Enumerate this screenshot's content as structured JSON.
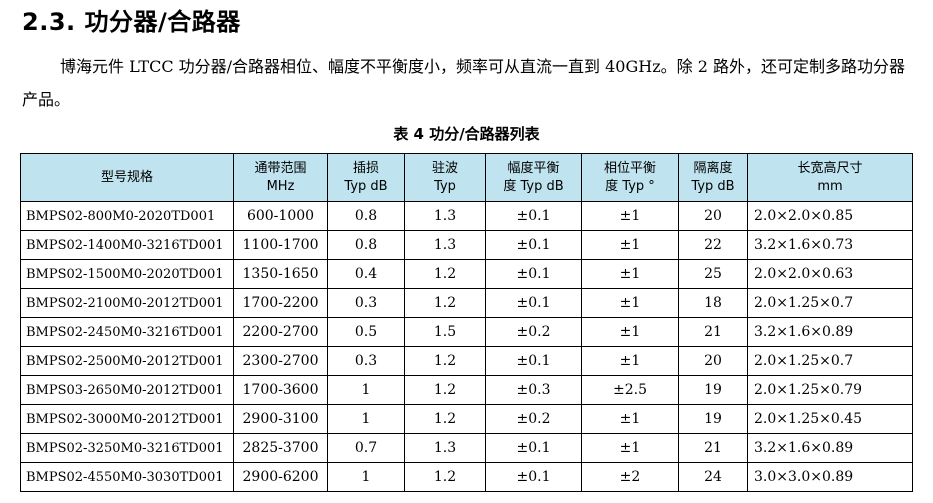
{
  "section": {
    "title": "2.3. 功分器/合路器"
  },
  "intro": {
    "text": "博海元件 LTCC 功分器/合路器相位、幅度不平衡度小，频率可从直流一直到 40GHz。除 2 路外，还可定制多路功分器产品。"
  },
  "table": {
    "caption": "表 4   功分/合路器列表",
    "headers": [
      {
        "line1": "型号规格",
        "line2": ""
      },
      {
        "line1": "通带范围",
        "line2": "MHz"
      },
      {
        "line1": "插损",
        "line2": "Typ dB"
      },
      {
        "line1": "驻波",
        "line2": "Typ"
      },
      {
        "line1": "幅度平衡",
        "line2": "度 Typ dB"
      },
      {
        "line1": "相位平衡",
        "line2": "度 Typ °"
      },
      {
        "line1": "隔离度",
        "line2": "Typ dB"
      },
      {
        "line1": "长宽高尺寸",
        "line2": "mm"
      }
    ],
    "rows": [
      [
        "BMPS02-800M0-2020TD001",
        "600-1000",
        "0.8",
        "1.3",
        "±0.1",
        "±1",
        "20",
        "2.0×2.0×0.85"
      ],
      [
        "BMPS02-1400M0-3216TD001",
        "1100-1700",
        "0.8",
        "1.3",
        "±0.1",
        "±1",
        "22",
        "3.2×1.6×0.73"
      ],
      [
        "BMPS02-1500M0-2020TD001",
        "1350-1650",
        "0.4",
        "1.2",
        "±0.1",
        "±1",
        "25",
        "2.0×2.0×0.63"
      ],
      [
        "BMPS02-2100M0-2012TD001",
        "1700-2200",
        "0.3",
        "1.2",
        "±0.1",
        "±1",
        "18",
        "2.0×1.25×0.7"
      ],
      [
        "BMPS02-2450M0-3216TD001",
        "2200-2700",
        "0.5",
        "1.5",
        "±0.2",
        "±1",
        "21",
        "3.2×1.6×0.89"
      ],
      [
        "BMPS02-2500M0-2012TD001",
        "2300-2700",
        "0.3",
        "1.2",
        "±0.1",
        "±1",
        "20",
        "2.0×1.25×0.7"
      ],
      [
        "BMPS03-2650M0-2012TD001",
        "1700-3600",
        "1",
        "1.2",
        "±0.3",
        "±2.5",
        "19",
        "2.0×1.25×0.79"
      ],
      [
        "BMPS02-3000M0-2012TD001",
        "2900-3100",
        "1",
        "1.2",
        "±0.2",
        "±1",
        "19",
        "2.0×1.25×0.45"
      ],
      [
        "BMPS02-3250M0-3216TD001",
        "2825-3700",
        "0.7",
        "1.3",
        "±0.1",
        "±1",
        "21",
        "3.2×1.6×0.89"
      ],
      [
        "BMPS02-4550M0-3030TD001",
        "2900-6200",
        "1",
        "1.2",
        "±0.1",
        "±2",
        "24",
        "3.0×3.0×0.89"
      ]
    ]
  },
  "colors": {
    "header_bg": "#bfe3ef"
  }
}
